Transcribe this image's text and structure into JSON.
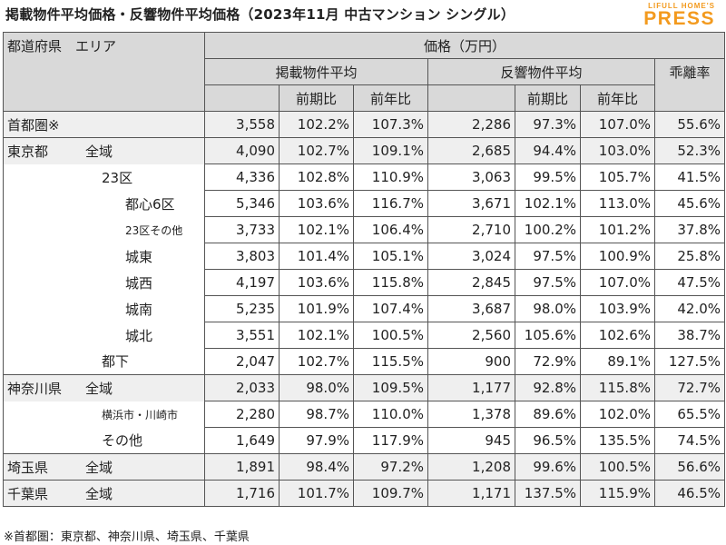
{
  "title": "掲載物件平均価格・反響物件平均価格（2023年11月 中古マンション シングル）",
  "logo": {
    "top": "LIFULL HOME'S",
    "bottom": "PRESS"
  },
  "header": {
    "region": "都道府県　エリア",
    "price_unit": "価格（万円）",
    "listed_avg": "掲載物件平均",
    "response_avg": "反響物件平均",
    "divergence": "乖離率",
    "mom": "前期比",
    "yoy": "前年比"
  },
  "rows": [
    {
      "pref": "首都圏※",
      "area": "",
      "listed": "3,558",
      "l_mom": "102.2%",
      "l_yoy": "107.3%",
      "resp": "2,286",
      "r_mom": "97.3%",
      "r_yoy": "107.0%",
      "div": "55.6%"
    },
    {
      "pref": "東京都",
      "area": "全域",
      "listed": "4,090",
      "l_mom": "102.7%",
      "l_yoy": "109.1%",
      "resp": "2,685",
      "r_mom": "94.4%",
      "r_yoy": "103.0%",
      "div": "52.3%"
    },
    {
      "pref": "",
      "area": "23区",
      "listed": "4,336",
      "l_mom": "102.8%",
      "l_yoy": "110.9%",
      "resp": "3,063",
      "r_mom": "99.5%",
      "r_yoy": "105.7%",
      "div": "41.5%"
    },
    {
      "pref": "",
      "area": "都心6区",
      "listed": "5,346",
      "l_mom": "103.6%",
      "l_yoy": "116.7%",
      "resp": "3,671",
      "r_mom": "102.1%",
      "r_yoy": "113.0%",
      "div": "45.6%"
    },
    {
      "pref": "",
      "area": "23区その他",
      "listed": "3,733",
      "l_mom": "102.1%",
      "l_yoy": "106.4%",
      "resp": "2,710",
      "r_mom": "100.2%",
      "r_yoy": "101.2%",
      "div": "37.8%"
    },
    {
      "pref": "",
      "area": "城東",
      "listed": "3,803",
      "l_mom": "101.4%",
      "l_yoy": "105.1%",
      "resp": "3,024",
      "r_mom": "97.5%",
      "r_yoy": "100.9%",
      "div": "25.8%"
    },
    {
      "pref": "",
      "area": "城西",
      "listed": "4,197",
      "l_mom": "103.6%",
      "l_yoy": "115.8%",
      "resp": "2,845",
      "r_mom": "97.5%",
      "r_yoy": "107.0%",
      "div": "47.5%"
    },
    {
      "pref": "",
      "area": "城南",
      "listed": "5,235",
      "l_mom": "101.9%",
      "l_yoy": "107.4%",
      "resp": "3,687",
      "r_mom": "98.0%",
      "r_yoy": "103.9%",
      "div": "42.0%"
    },
    {
      "pref": "",
      "area": "城北",
      "listed": "3,551",
      "l_mom": "102.1%",
      "l_yoy": "100.5%",
      "resp": "2,560",
      "r_mom": "105.6%",
      "r_yoy": "102.6%",
      "div": "38.7%"
    },
    {
      "pref": "",
      "area": "都下",
      "listed": "2,047",
      "l_mom": "102.7%",
      "l_yoy": "115.5%",
      "resp": "900",
      "r_mom": "72.9%",
      "r_yoy": "89.1%",
      "div": "127.5%"
    },
    {
      "pref": "神奈川県",
      "area": "全域",
      "listed": "2,033",
      "l_mom": "98.0%",
      "l_yoy": "109.5%",
      "resp": "1,177",
      "r_mom": "92.8%",
      "r_yoy": "115.8%",
      "div": "72.7%"
    },
    {
      "pref": "",
      "area": "横浜市・川崎市",
      "listed": "2,280",
      "l_mom": "98.7%",
      "l_yoy": "110.0%",
      "resp": "1,378",
      "r_mom": "89.6%",
      "r_yoy": "102.0%",
      "div": "65.5%"
    },
    {
      "pref": "",
      "area": "その他",
      "listed": "1,649",
      "l_mom": "97.9%",
      "l_yoy": "117.9%",
      "resp": "945",
      "r_mom": "96.5%",
      "r_yoy": "135.5%",
      "div": "74.5%"
    },
    {
      "pref": "埼玉県",
      "area": "全域",
      "listed": "1,891",
      "l_mom": "98.4%",
      "l_yoy": "97.2%",
      "resp": "1,208",
      "r_mom": "99.6%",
      "r_yoy": "100.5%",
      "div": "56.6%"
    },
    {
      "pref": "千葉県",
      "area": "全域",
      "listed": "1,716",
      "l_mom": "101.7%",
      "l_yoy": "109.7%",
      "resp": "1,171",
      "r_mom": "137.5%",
      "r_yoy": "115.9%",
      "div": "46.5%"
    }
  ],
  "footnote": "※首都圏：東京都、神奈川県、埼玉県、千葉県"
}
